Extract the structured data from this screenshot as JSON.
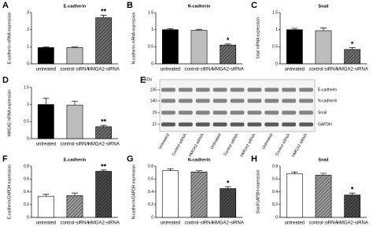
{
  "chart_data": [
    {
      "type": "bar",
      "panel": "A",
      "title": "E-cadherin",
      "ylabel": "E-cadherin mRNA expression",
      "categories": [
        "untreated",
        "control-siRNA",
        "HMGA2-siRNA"
      ],
      "values": [
        0.95,
        0.95,
        2.7
      ],
      "errors": [
        0.04,
        0.04,
        0.15
      ],
      "significance": [
        null,
        null,
        "**"
      ],
      "colors": [
        "#000000",
        "#bdbdbd",
        "#6e6e6e"
      ],
      "patterns": [
        "solid",
        "solid",
        "hatch"
      ],
      "ylim": [
        0,
        3
      ],
      "yticks": [
        0,
        1,
        2,
        3
      ]
    },
    {
      "type": "bar",
      "panel": "B",
      "title": "N-cadherin",
      "ylabel": "N-cadherin mRNA expression",
      "categories": [
        "untreated",
        "control-siRNA",
        "HMGA2-siRNA"
      ],
      "values": [
        1.0,
        0.98,
        0.55
      ],
      "errors": [
        0.03,
        0.03,
        0.03
      ],
      "significance": [
        null,
        null,
        "*"
      ],
      "colors": [
        "#000000",
        "#bdbdbd",
        "#6e6e6e"
      ],
      "patterns": [
        "solid",
        "solid",
        "hatch"
      ],
      "ylim": [
        0,
        1.5
      ],
      "yticks": [
        0,
        0.5,
        1,
        1.5
      ]
    },
    {
      "type": "bar",
      "panel": "C",
      "title": "Snail",
      "ylabel": "Snail mRNA expression",
      "categories": [
        "untreated",
        "control-siRNA",
        "HMGA2-siRNA"
      ],
      "values": [
        1.0,
        0.97,
        0.42
      ],
      "errors": [
        0.04,
        0.08,
        0.05
      ],
      "significance": [
        null,
        null,
        "*"
      ],
      "colors": [
        "#000000",
        "#bdbdbd",
        "#6e6e6e"
      ],
      "patterns": [
        "solid",
        "solid",
        "hatch"
      ],
      "ylim": [
        0,
        1.5
      ],
      "yticks": [
        0,
        0.5,
        1,
        1.5
      ]
    },
    {
      "type": "bar",
      "panel": "D",
      "title": null,
      "ylabel": "HMGA2 mRNA expression",
      "categories": [
        "untreated",
        "control-siRNA",
        "HMGA2-siRNA"
      ],
      "values": [
        1.0,
        0.98,
        0.35
      ],
      "errors": [
        0.18,
        0.12,
        0.04
      ],
      "significance": [
        null,
        null,
        "**"
      ],
      "colors": [
        "#000000",
        "#bdbdbd",
        "#6e6e6e"
      ],
      "patterns": [
        "solid",
        "solid",
        "hatch"
      ],
      "ylim": [
        0,
        1.5
      ],
      "yticks": [
        0,
        0.5,
        1,
        1.5
      ]
    },
    {
      "type": "bar",
      "panel": "F",
      "title": "E-cadherin",
      "ylabel": "E-cadherin/GAPDH expression",
      "categories": [
        "untreated",
        "control-siRNA",
        "HMGA2-siRNA"
      ],
      "values": [
        0.33,
        0.34,
        0.72
      ],
      "errors": [
        0.03,
        0.04,
        0.02
      ],
      "significance": [
        null,
        null,
        "**"
      ],
      "colors": [
        "#ffffff",
        "#9e9e9e",
        "#4a4a4a"
      ],
      "patterns": [
        "solid",
        "hatch",
        "hatch"
      ],
      "ylim": [
        0,
        0.8
      ],
      "yticks": [
        0,
        0.2,
        0.4,
        0.6,
        0.8
      ]
    },
    {
      "type": "bar",
      "panel": "G",
      "title": "N-cadherin",
      "ylabel": "N-cadherin/GAPDH expression",
      "categories": [
        "untreated",
        "control-siRNA",
        "HMGA2-siRNA"
      ],
      "values": [
        0.73,
        0.71,
        0.45
      ],
      "errors": [
        0.03,
        0.02,
        0.03
      ],
      "significance": [
        null,
        null,
        "*"
      ],
      "colors": [
        "#ffffff",
        "#9e9e9e",
        "#4a4a4a"
      ],
      "patterns": [
        "solid",
        "hatch",
        "hatch"
      ],
      "ylim": [
        0,
        0.8
      ],
      "yticks": [
        0,
        0.2,
        0.4,
        0.6,
        0.8
      ]
    },
    {
      "type": "bar",
      "panel": "H",
      "title": "Snail",
      "ylabel": "Snail/GAPDH expression",
      "categories": [
        "untreated",
        "control-siRNA",
        "HMGA2-siRNA"
      ],
      "values": [
        0.68,
        0.66,
        0.35
      ],
      "errors": [
        0.03,
        0.03,
        0.03
      ],
      "significance": [
        null,
        null,
        "*"
      ],
      "colors": [
        "#ffffff",
        "#9e9e9e",
        "#4a4a4a"
      ],
      "patterns": [
        "solid",
        "hatch",
        "hatch"
      ],
      "ylim": [
        0,
        0.8
      ],
      "yticks": [
        0,
        0.2,
        0.4,
        0.6,
        0.8
      ]
    }
  ],
  "blot": {
    "panel": "E",
    "unit": "kDa",
    "weights": [
      "135",
      "140",
      "29",
      "37"
    ],
    "bands": [
      "E-cadherin",
      "N-cadherin",
      "Snail",
      "GAPDH"
    ],
    "lanes": [
      "Untreated",
      "Control siRNA",
      "HMGA2 siRNA",
      "Untreated",
      "Control siRNA",
      "HMGA2 siRNA",
      "Untreated",
      "Control siRNA",
      "HMGA2 siRNA"
    ]
  }
}
